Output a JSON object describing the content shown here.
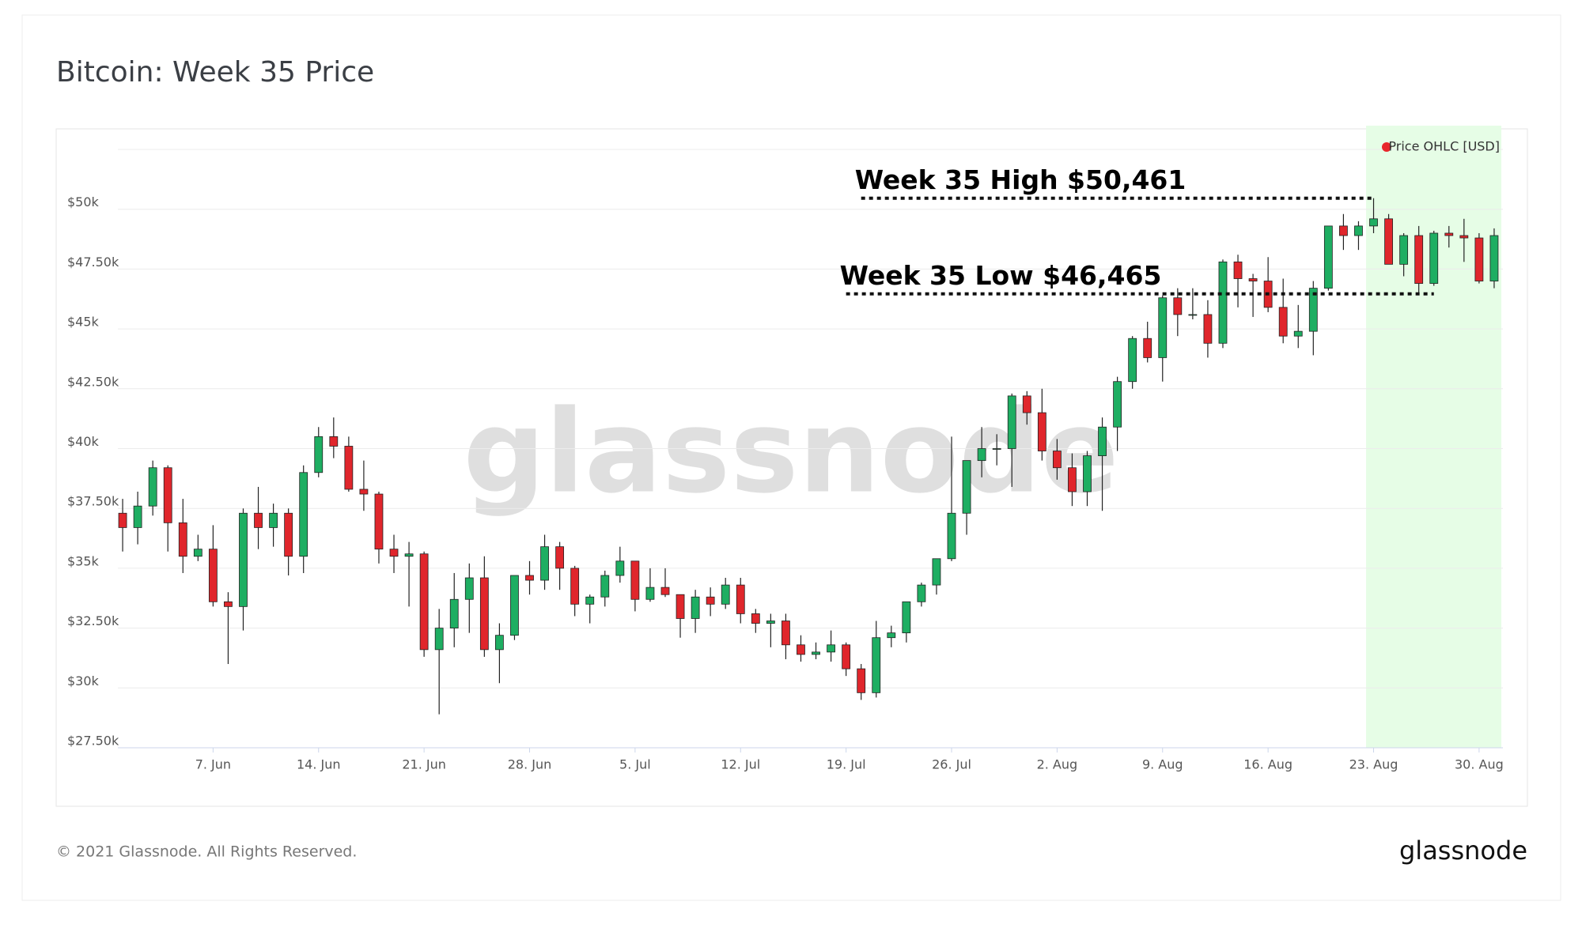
{
  "chart_data": {
    "type": "candlestick",
    "title": "Bitcoin: Week 35 Price",
    "x": [
      "06-01",
      "06-02",
      "06-03",
      "06-04",
      "06-05",
      "06-06",
      "06-07",
      "06-08",
      "06-09",
      "06-10",
      "06-11",
      "06-12",
      "06-13",
      "06-14",
      "06-15",
      "06-16",
      "06-17",
      "06-18",
      "06-19",
      "06-20",
      "06-21",
      "06-22",
      "06-23",
      "06-24",
      "06-25",
      "06-26",
      "06-27",
      "06-28",
      "06-29",
      "06-30",
      "07-01",
      "07-02",
      "07-03",
      "07-04",
      "07-05",
      "07-06",
      "07-07",
      "07-08",
      "07-09",
      "07-10",
      "07-11",
      "07-12",
      "07-13",
      "07-14",
      "07-15",
      "07-16",
      "07-17",
      "07-18",
      "07-19",
      "07-20",
      "07-21",
      "07-22",
      "07-23",
      "07-24",
      "07-25",
      "07-26",
      "07-27",
      "07-28",
      "07-29",
      "07-30",
      "07-31",
      "08-01",
      "08-02",
      "08-03",
      "08-04",
      "08-05",
      "08-06",
      "08-07",
      "08-08",
      "08-09",
      "08-10",
      "08-11",
      "08-12",
      "08-13",
      "08-14",
      "08-15",
      "08-16",
      "08-17",
      "08-18",
      "08-19",
      "08-20",
      "08-21",
      "08-22",
      "08-23",
      "08-24",
      "08-25",
      "08-26",
      "08-27",
      "08-28",
      "08-29",
      "08-30",
      "08-31"
    ],
    "series": [
      {
        "name": "Price OHLC [USD]",
        "color": "#e8262b",
        "up_color": "#1eae62",
        "down_color": "#e0262c",
        "open": [
          37300,
          36700,
          37600,
          39200,
          36900,
          35500,
          35800,
          33600,
          33400,
          37300,
          36700,
          37300,
          35500,
          39000,
          40500,
          40100,
          38300,
          38100,
          35800,
          35500,
          35600,
          31600,
          32500,
          33700,
          34600,
          31600,
          32200,
          34700,
          34500,
          35900,
          35000,
          33500,
          33800,
          34700,
          35300,
          33700,
          34200,
          33900,
          32900,
          33800,
          33500,
          34300,
          33100,
          32700,
          32800,
          31800,
          31400,
          31500,
          31800,
          30800,
          29800,
          32100,
          32300,
          33600,
          34300,
          35400,
          37300,
          39500,
          40000,
          40000,
          42200,
          41500,
          39900,
          39200,
          38200,
          39700,
          40900,
          42800,
          44600,
          43800,
          46300,
          45600,
          45600,
          44400,
          47800,
          47100,
          47000,
          45900,
          44700,
          44900,
          46700,
          49300,
          48900,
          49300,
          49600,
          47700,
          48900,
          46900,
          49000,
          48900,
          48800,
          47000
        ],
        "high": [
          37900,
          38200,
          39500,
          39300,
          37900,
          36400,
          36800,
          34000,
          37500,
          38400,
          37700,
          37500,
          39300,
          40900,
          41300,
          40500,
          39500,
          38200,
          36400,
          36100,
          35700,
          33300,
          34800,
          35200,
          35500,
          32700,
          34700,
          35300,
          36400,
          36100,
          35100,
          33900,
          34900,
          35900,
          35300,
          35000,
          35000,
          33900,
          34100,
          34200,
          34600,
          34600,
          33300,
          33100,
          33100,
          32200,
          31900,
          32400,
          31900,
          31000,
          32800,
          32600,
          33600,
          34400,
          35400,
          40500,
          39500,
          40900,
          40600,
          42300,
          42400,
          42500,
          40400,
          39800,
          39900,
          41300,
          43000,
          44700,
          45300,
          46400,
          46700,
          46700,
          46200,
          47900,
          48100,
          47300,
          48000,
          47100,
          46000,
          47000,
          49300,
          49800,
          49500,
          50461,
          49800,
          49000,
          49300,
          49100,
          49300,
          49600,
          49000,
          49200
        ],
        "low": [
          35700,
          36000,
          37200,
          35700,
          34800,
          35300,
          33400,
          31000,
          32400,
          35800,
          35900,
          34700,
          34800,
          38800,
          39600,
          38200,
          37400,
          35200,
          34800,
          33400,
          31300,
          28900,
          31700,
          32300,
          31300,
          30200,
          32000,
          33900,
          34100,
          34100,
          33000,
          32700,
          33400,
          34400,
          33200,
          33600,
          33800,
          32100,
          32300,
          33000,
          33300,
          32700,
          32300,
          31700,
          31200,
          31100,
          31200,
          31100,
          30500,
          29500,
          29600,
          31700,
          31900,
          33400,
          33900,
          35300,
          36400,
          38800,
          39300,
          38400,
          41000,
          39500,
          38700,
          37600,
          37600,
          37400,
          39900,
          42500,
          43600,
          42800,
          44700,
          45400,
          43800,
          44200,
          45900,
          45500,
          45700,
          44400,
          44200,
          43900,
          46600,
          48300,
          48300,
          49000,
          47700,
          47200,
          46465,
          46800,
          48400,
          47800,
          46900,
          46700
        ],
        "close": [
          36700,
          37600,
          39200,
          36900,
          35500,
          35800,
          33600,
          33400,
          37300,
          36700,
          37300,
          35500,
          39000,
          40500,
          40100,
          38300,
          38100,
          35800,
          35500,
          35600,
          31600,
          32500,
          33700,
          34600,
          31600,
          32200,
          34700,
          34500,
          35900,
          35000,
          33500,
          33800,
          34700,
          35300,
          33700,
          34200,
          33900,
          32900,
          33800,
          33500,
          34300,
          33100,
          32700,
          32800,
          31800,
          31400,
          31500,
          31800,
          30800,
          29800,
          32100,
          32300,
          33600,
          34300,
          35400,
          37300,
          39500,
          40000,
          40000,
          42200,
          41500,
          39900,
          39200,
          38200,
          39700,
          40900,
          42800,
          44600,
          43800,
          46300,
          45600,
          45600,
          44400,
          47800,
          47100,
          47000,
          45900,
          44700,
          44900,
          46700,
          49300,
          48900,
          49300,
          49600,
          47700,
          48900,
          46900,
          49000,
          48900,
          48800,
          47000,
          48900
        ]
      }
    ],
    "xlim": [
      "05-31",
      "09-01"
    ],
    "xticks": [
      {
        "value": "06-07",
        "label": "7. Jun"
      },
      {
        "value": "06-14",
        "label": "14. Jun"
      },
      {
        "value": "06-21",
        "label": "21. Jun"
      },
      {
        "value": "06-28",
        "label": "28. Jun"
      },
      {
        "value": "07-05",
        "label": "5. Jul"
      },
      {
        "value": "07-12",
        "label": "12. Jul"
      },
      {
        "value": "07-19",
        "label": "19. Jul"
      },
      {
        "value": "07-26",
        "label": "26. Jul"
      },
      {
        "value": "08-02",
        "label": "2. Aug"
      },
      {
        "value": "08-09",
        "label": "9. Aug"
      },
      {
        "value": "08-16",
        "label": "16. Aug"
      },
      {
        "value": "08-23",
        "label": "23. Aug"
      },
      {
        "value": "08-30",
        "label": "30. Aug"
      }
    ],
    "ylim": [
      27500,
      52500
    ],
    "yticks": [
      {
        "value": 27500,
        "label": "$27.50k"
      },
      {
        "value": 30000,
        "label": "$30k"
      },
      {
        "value": 32500,
        "label": "$32.50k"
      },
      {
        "value": 35000,
        "label": "$35k"
      },
      {
        "value": 37500,
        "label": "$37.50k"
      },
      {
        "value": 40000,
        "label": "$40k"
      },
      {
        "value": 42500,
        "label": "$42.50k"
      },
      {
        "value": 45000,
        "label": "$45k"
      },
      {
        "value": 47500,
        "label": "$47.50k"
      },
      {
        "value": 50000,
        "label": "$50k"
      }
    ],
    "grid": true,
    "legend": "top-right",
    "highlight": {
      "from": "08-23",
      "to": "09-01",
      "color": "#e6fde6"
    },
    "annotations": [
      {
        "text": "Week 35 High $50,461",
        "value": 50461,
        "from": "07-20",
        "to": "08-23"
      },
      {
        "text": "Week 35 Low $46,465",
        "value": 46465,
        "from": "07-19",
        "to": "08-27"
      }
    ],
    "watermark": "glassnode"
  },
  "footer": {
    "copyright": "© 2021 Glassnode. All Rights Reserved.",
    "logo": "glassnode"
  }
}
